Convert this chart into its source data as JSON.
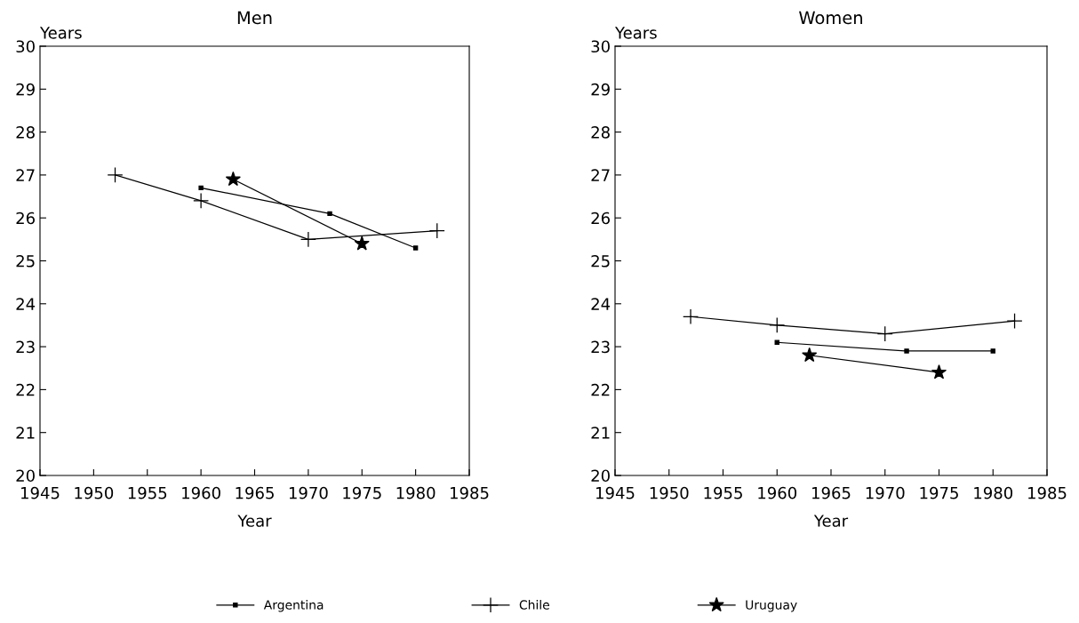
{
  "chart_data": [
    {
      "type": "line",
      "title": "Men",
      "xlabel": "Year",
      "ylabel": "Years",
      "xlim": [
        1945,
        1985
      ],
      "xticks": [
        1945,
        1950,
        1955,
        1960,
        1965,
        1970,
        1975,
        1980,
        1985
      ],
      "ylim": [
        20,
        30
      ],
      "yticks": [
        20,
        21,
        22,
        23,
        24,
        25,
        26,
        27,
        28,
        29,
        30
      ],
      "grid": false,
      "legend": "bottom",
      "series": [
        {
          "name": "Argentina",
          "color": "#000000",
          "marker": "square",
          "x": [
            1960,
            1972,
            1980
          ],
          "values": [
            26.7,
            26.1,
            25.3
          ]
        },
        {
          "name": "Chile",
          "color": "#000000",
          "marker": "cross",
          "x": [
            1952,
            1960,
            1970,
            1982
          ],
          "values": [
            27.0,
            26.4,
            25.5,
            25.7
          ]
        },
        {
          "name": "Uruguay",
          "color": "#000000",
          "marker": "star",
          "x": [
            1963,
            1975
          ],
          "values": [
            26.9,
            25.4
          ]
        }
      ]
    },
    {
      "type": "line",
      "title": "Women",
      "xlabel": "Year",
      "ylabel": "Years",
      "xlim": [
        1945,
        1985
      ],
      "xticks": [
        1945,
        1950,
        1955,
        1960,
        1965,
        1970,
        1975,
        1980,
        1985
      ],
      "ylim": [
        20,
        30
      ],
      "yticks": [
        20,
        21,
        22,
        23,
        24,
        25,
        26,
        27,
        28,
        29,
        30
      ],
      "grid": false,
      "legend": "bottom",
      "series": [
        {
          "name": "Argentina",
          "color": "#000000",
          "marker": "square",
          "x": [
            1960,
            1972,
            1980
          ],
          "values": [
            23.1,
            22.9,
            22.9
          ]
        },
        {
          "name": "Chile",
          "color": "#000000",
          "marker": "cross",
          "x": [
            1952,
            1960,
            1970,
            1982
          ],
          "values": [
            23.7,
            23.5,
            23.3,
            23.6
          ]
        },
        {
          "name": "Uruguay",
          "color": "#000000",
          "marker": "star",
          "x": [
            1963,
            1975
          ],
          "values": [
            22.8,
            22.4
          ]
        }
      ]
    }
  ]
}
